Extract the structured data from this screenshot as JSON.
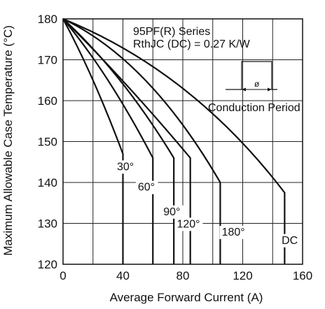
{
  "chart_data": {
    "type": "line",
    "xlabel": "Average Forward Current (A)",
    "ylabel": "Maximum Allowable Case Temperature (°C)",
    "xlim": [
      0,
      160
    ],
    "ylim": [
      120,
      180
    ],
    "xticks": [
      0,
      40,
      80,
      120,
      160
    ],
    "yticks": [
      120,
      130,
      140,
      150,
      160,
      170,
      180
    ],
    "grid": true,
    "annotations": {
      "series_title": "95PF(R) Series",
      "rth": "RthJC  (DC) = 0.27 K/W",
      "conduction": "Conduction Period",
      "phi": "ø"
    },
    "series": [
      {
        "name": "30°",
        "x": [
          0,
          20,
          40,
          40
        ],
        "y": [
          180,
          165,
          147,
          120
        ],
        "label_at": [
          36,
          143
        ]
      },
      {
        "name": "60°",
        "x": [
          0,
          30,
          60,
          60
        ],
        "y": [
          180,
          165,
          146,
          120
        ],
        "label_at": [
          50,
          138
        ]
      },
      {
        "name": "90°",
        "x": [
          0,
          38,
          74,
          74
        ],
        "y": [
          180,
          165,
          146,
          120
        ],
        "label_at": [
          67,
          132
        ]
      },
      {
        "name": "120°",
        "x": [
          0,
          42,
          85,
          85
        ],
        "y": [
          180,
          164,
          146,
          120
        ],
        "label_at": [
          76,
          129
        ]
      },
      {
        "name": "180°",
        "x": [
          0,
          55,
          105,
          105
        ],
        "y": [
          180,
          165,
          140,
          120
        ],
        "label_at": [
          106,
          127
        ]
      },
      {
        "name": "DC",
        "x": [
          0,
          80,
          148,
          148
        ],
        "y": [
          180,
          163,
          137.5,
          120
        ],
        "label_at": [
          146,
          125
        ]
      }
    ]
  }
}
